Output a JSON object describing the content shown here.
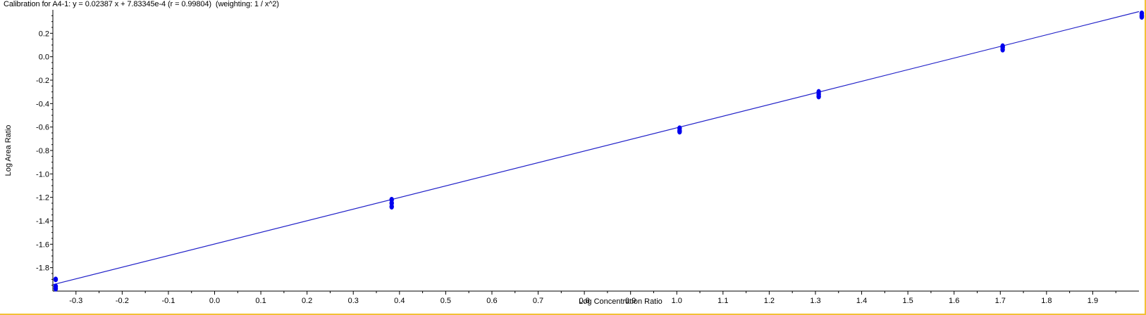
{
  "chart_data": {
    "type": "scatter",
    "title": "Calibration for A4-1: y = 0.02387 x + 7.83345e-4 (r = 0.99804)  (weighting: 1 / x^2)",
    "xlabel": "Log Concentration Ratio",
    "ylabel": "Log Area Ratio",
    "xlim": [
      -0.35,
      2.0
    ],
    "ylim": [
      -2.0,
      0.4
    ],
    "x_ticks": [
      -0.3,
      -0.2,
      -0.1,
      0.0,
      0.1,
      0.2,
      0.3,
      0.4,
      0.5,
      0.6,
      0.7,
      0.8,
      0.9,
      1.0,
      1.1,
      1.2,
      1.3,
      1.4,
      1.5,
      1.6,
      1.7,
      1.8,
      1.9
    ],
    "x_tick_labels": [
      "-0.3",
      "-0.2",
      "-0.1",
      "0.0",
      "0.1",
      "0.2",
      "0.3",
      "0.4",
      "0.5",
      "0.6",
      "0.7",
      "0.8",
      "0.9",
      "1.0",
      "1.1",
      "1.2",
      "1.3",
      "1.4",
      "1.5",
      "1.6",
      "1.7",
      "1.8",
      "1.9"
    ],
    "y_ticks": [
      0.2,
      0.0,
      -0.2,
      -0.4,
      -0.6,
      -0.8,
      -1.0,
      -1.2,
      -1.4,
      -1.6,
      -1.8
    ],
    "y_tick_labels": [
      "0.2",
      "0.0",
      "-0.2",
      "-0.4",
      "-0.6",
      "-0.8",
      "-1.0",
      "-1.2",
      "-1.4",
      "-1.6",
      "-1.8"
    ],
    "grid": false,
    "points": [
      {
        "x": -0.35,
        "y": -1.9
      },
      {
        "x": -0.35,
        "y": -1.96
      },
      {
        "x": -0.35,
        "y": -1.98
      },
      {
        "x": 0.377,
        "y": -1.22
      },
      {
        "x": 0.377,
        "y": -1.25
      },
      {
        "x": 0.377,
        "y": -1.28
      },
      {
        "x": 1.0,
        "y": -0.61
      },
      {
        "x": 1.0,
        "y": -0.63
      },
      {
        "x": 1.0,
        "y": -0.64
      },
      {
        "x": 1.301,
        "y": -0.3
      },
      {
        "x": 1.301,
        "y": -0.32
      },
      {
        "x": 1.301,
        "y": -0.34
      },
      {
        "x": 1.699,
        "y": 0.09
      },
      {
        "x": 1.699,
        "y": 0.08
      },
      {
        "x": 1.699,
        "y": 0.06
      },
      {
        "x": 2.0,
        "y": 0.37
      },
      {
        "x": 2.0,
        "y": 0.35
      },
      {
        "x": 2.0,
        "y": 0.34
      }
    ],
    "fit_line": {
      "x": [
        -0.35,
        2.0
      ],
      "y": [
        -1.945,
        0.385
      ]
    },
    "marker_color": "#0000ee",
    "line_color": "#2020c8"
  }
}
